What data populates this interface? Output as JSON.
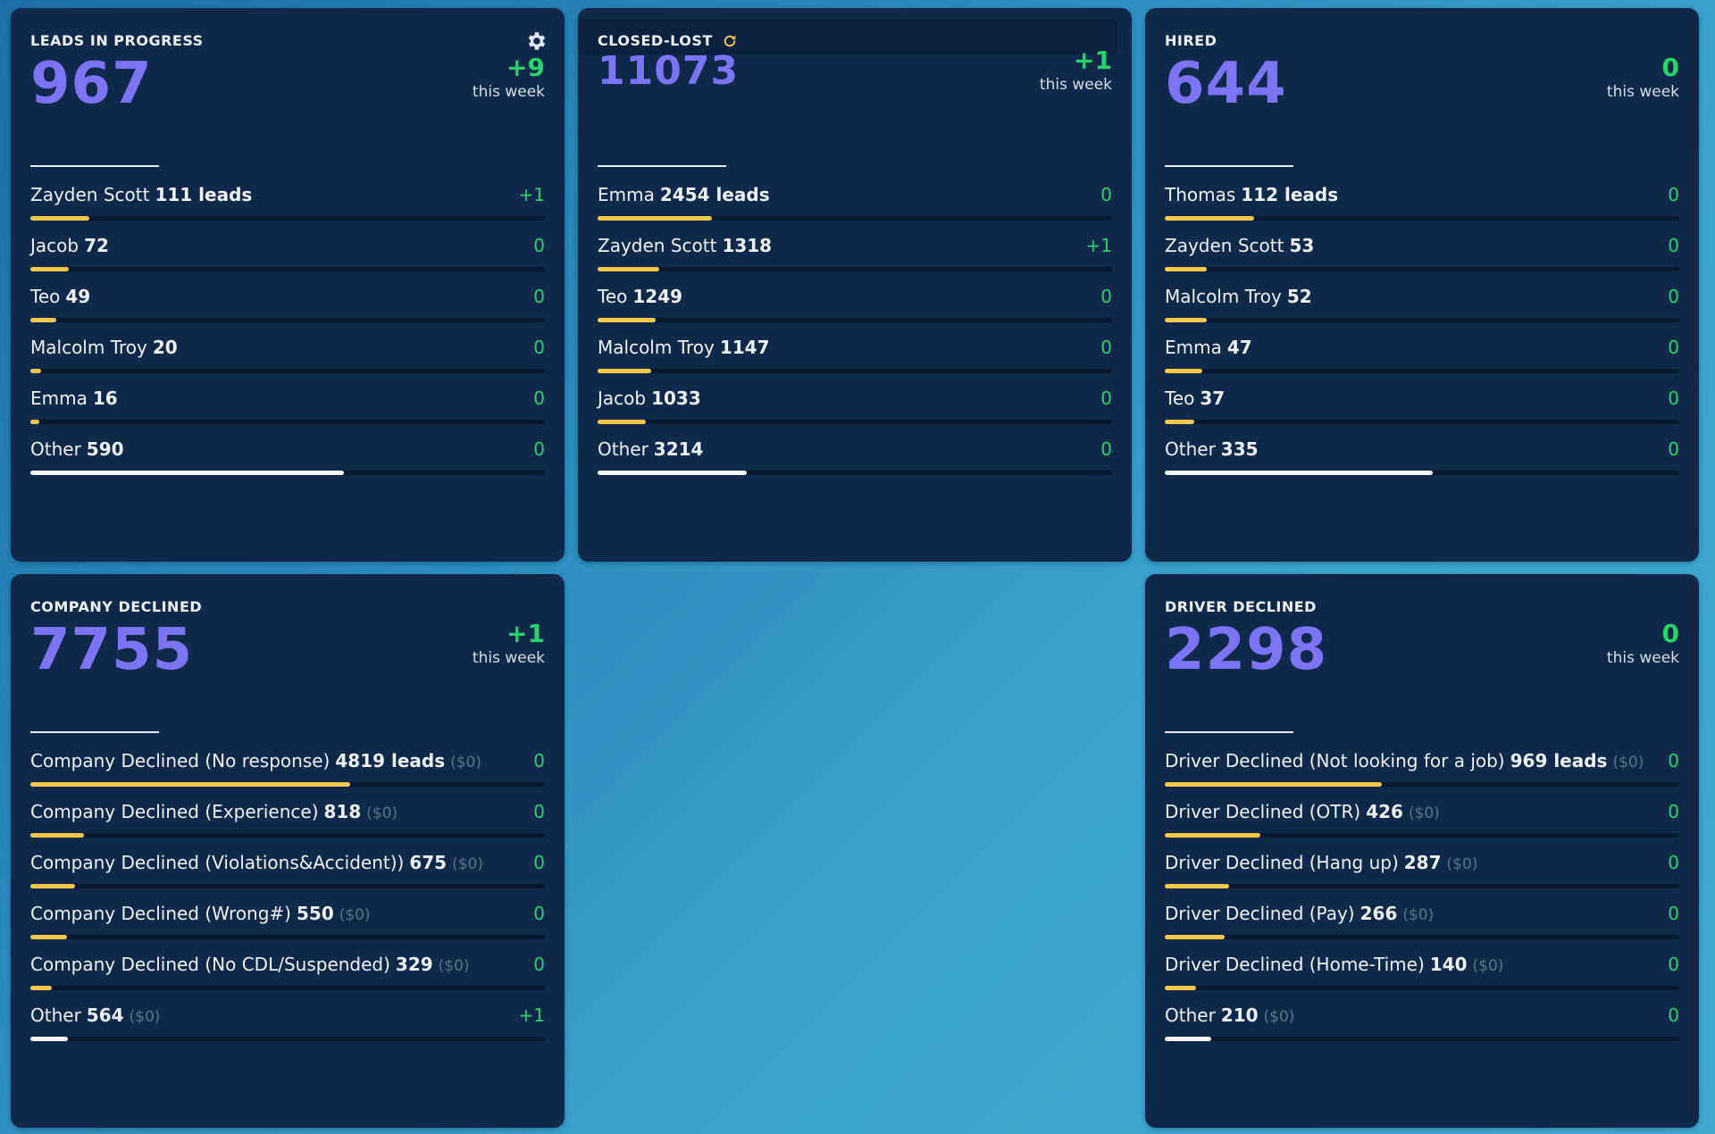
{
  "colors": {
    "accent_number": "#7b74f5",
    "delta_green": "#27d36b",
    "bar_yellow": "#f6c94d",
    "bar_other": "#f3f6fb",
    "card_bg": "#10284a"
  },
  "week_label": "this week",
  "cards": [
    {
      "title": "LEADS IN PROGRESS",
      "icon": "gear-icon",
      "total": "967",
      "week_delta": "+9",
      "rows": [
        {
          "name": "Zayden Scott",
          "count": "111 leads",
          "delta": "+1",
          "fraction": 0.115
        },
        {
          "name": "Jacob",
          "count": "72",
          "delta": "0",
          "fraction": 0.075
        },
        {
          "name": "Teo",
          "count": "49",
          "delta": "0",
          "fraction": 0.051
        },
        {
          "name": "Malcolm Troy",
          "count": "20",
          "delta": "0",
          "fraction": 0.021
        },
        {
          "name": "Emma",
          "count": "16",
          "delta": "0",
          "fraction": 0.017
        },
        {
          "name": "Other",
          "count": "590",
          "delta": "0",
          "fraction": 0.61,
          "other": true
        }
      ]
    },
    {
      "title": "CLOSED-LOST",
      "icon": "refresh-icon",
      "total": "11073",
      "week_delta": "+1",
      "rows": [
        {
          "name": "Emma",
          "count": "2454 leads",
          "delta": "0",
          "fraction": 0.222
        },
        {
          "name": "Zayden Scott",
          "count": "1318",
          "delta": "+1",
          "fraction": 0.119
        },
        {
          "name": "Teo",
          "count": "1249",
          "delta": "0",
          "fraction": 0.113
        },
        {
          "name": "Malcolm Troy",
          "count": "1147",
          "delta": "0",
          "fraction": 0.104
        },
        {
          "name": "Jacob",
          "count": "1033",
          "delta": "0",
          "fraction": 0.093
        },
        {
          "name": "Other",
          "count": "3214",
          "delta": "0",
          "fraction": 0.29,
          "other": true
        }
      ]
    },
    {
      "title": "HIRED",
      "total": "644",
      "week_delta": "0",
      "rows": [
        {
          "name": "Thomas",
          "count": "112 leads",
          "delta": "0",
          "fraction": 0.174
        },
        {
          "name": "Zayden Scott",
          "count": "53",
          "delta": "0",
          "fraction": 0.082
        },
        {
          "name": "Malcolm Troy",
          "count": "52",
          "delta": "0",
          "fraction": 0.081
        },
        {
          "name": "Emma",
          "count": "47",
          "delta": "0",
          "fraction": 0.073
        },
        {
          "name": "Teo",
          "count": "37",
          "delta": "0",
          "fraction": 0.057
        },
        {
          "name": "Other",
          "count": "335",
          "delta": "0",
          "fraction": 0.52,
          "other": true
        }
      ]
    },
    {
      "title": "COMPANY DECLINED",
      "total": "7755",
      "week_delta": "+1",
      "rows": [
        {
          "name": "Company Declined (No response)",
          "count": "4819 leads",
          "money": "($0)",
          "delta": "0",
          "fraction": 0.621
        },
        {
          "name": "Company Declined (Experience)",
          "count": "818",
          "money": "($0)",
          "delta": "0",
          "fraction": 0.105
        },
        {
          "name": "Company Declined (Violations&Accident))",
          "count": "675",
          "money": "($0)",
          "delta": "0",
          "fraction": 0.087
        },
        {
          "name": "Company Declined (Wrong#)",
          "count": "550",
          "money": "($0)",
          "delta": "0",
          "fraction": 0.071
        },
        {
          "name": "Company Declined (No CDL/Suspended)",
          "count": "329",
          "money": "($0)",
          "delta": "0",
          "fraction": 0.042
        },
        {
          "name": "Other",
          "count": "564",
          "money": "($0)",
          "delta": "+1",
          "fraction": 0.073,
          "other": true
        }
      ]
    },
    {
      "title": "DRIVER DECLINED",
      "total": "2298",
      "week_delta": "0",
      "rows": [
        {
          "name": "Driver Declined (Not looking for a job)",
          "count": "969 leads",
          "money": "($0)",
          "delta": "0",
          "fraction": 0.422
        },
        {
          "name": "Driver Declined (OTR)",
          "count": "426",
          "money": "($0)",
          "delta": "0",
          "fraction": 0.185
        },
        {
          "name": "Driver Declined (Hang up)",
          "count": "287",
          "money": "($0)",
          "delta": "0",
          "fraction": 0.125
        },
        {
          "name": "Driver Declined (Pay)",
          "count": "266",
          "money": "($0)",
          "delta": "0",
          "fraction": 0.116
        },
        {
          "name": "Driver Declined (Home-Time)",
          "count": "140",
          "money": "($0)",
          "delta": "0",
          "fraction": 0.061
        },
        {
          "name": "Other",
          "count": "210",
          "money": "($0)",
          "delta": "0",
          "fraction": 0.091,
          "other": true
        }
      ]
    }
  ]
}
